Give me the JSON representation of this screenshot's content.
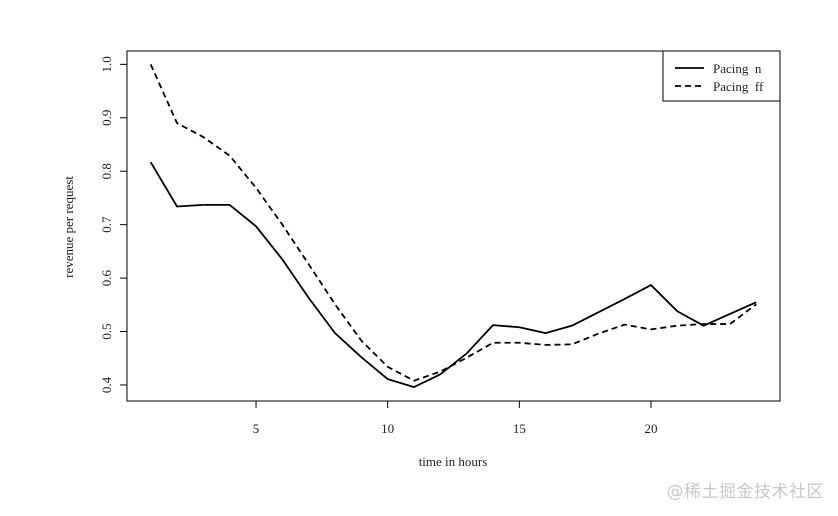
{
  "chart_data": {
    "type": "line",
    "xlabel": "time in hours",
    "ylabel": "revenue per request",
    "xlim": [
      0.1,
      24.9
    ],
    "ylim": [
      0.37,
      1.025
    ],
    "xticks": [
      5,
      10,
      15,
      20
    ],
    "yticks": [
      0.4,
      0.5,
      0.6,
      0.7,
      0.8,
      0.9,
      1.0
    ],
    "ytick_labels": [
      "0.4",
      "0.5",
      "0.6",
      "0.7",
      "0.8",
      "0.9",
      "1.0"
    ],
    "x": [
      1,
      2,
      3,
      4,
      5,
      6,
      7,
      8,
      9,
      10,
      11,
      12,
      13,
      14,
      15,
      16,
      17,
      18,
      19,
      20,
      21,
      22,
      23,
      24
    ],
    "series": [
      {
        "name": "Pacing  n",
        "style": "solid",
        "values": [
          0.817,
          0.734,
          0.737,
          0.737,
          0.697,
          0.635,
          0.563,
          0.497,
          0.452,
          0.411,
          0.396,
          0.42,
          0.459,
          0.512,
          0.508,
          0.497,
          0.511,
          0.536,
          0.561,
          0.587,
          0.538,
          0.511,
          0.533,
          0.555
        ]
      },
      {
        "name": "Pacing  ff",
        "style": "dashed",
        "values": [
          1.0,
          0.89,
          0.864,
          0.829,
          0.769,
          0.7,
          0.626,
          0.551,
          0.483,
          0.434,
          0.408,
          0.425,
          0.451,
          0.479,
          0.479,
          0.475,
          0.476,
          0.496,
          0.513,
          0.504,
          0.511,
          0.514,
          0.514,
          0.551
        ]
      }
    ],
    "legend": "top-right",
    "grid": false,
    "colors": {
      "line": "#000000",
      "axis": "#000000",
      "text": "#222222"
    }
  },
  "watermark": "@稀土掘金技术社区"
}
